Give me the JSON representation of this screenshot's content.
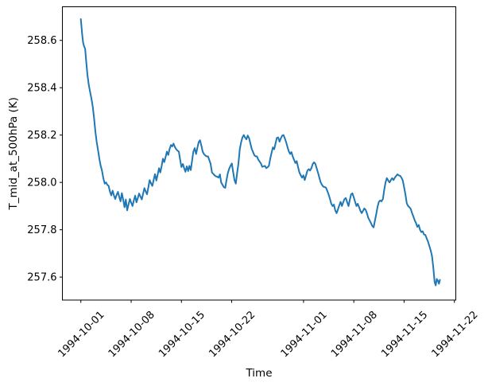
{
  "chart_data": {
    "type": "line",
    "title": "",
    "xlabel": "Time",
    "ylabel": "T_mid_at_500hPa (K)",
    "x_units": "days since 1994-10-01 00:00",
    "xlim": [
      -2.57,
      52.2
    ],
    "ylim": [
      257.503,
      258.742
    ],
    "grid": false,
    "legend_position": "none",
    "line_color": "#1f77b4",
    "line_width": 2,
    "x_ticks": [
      {
        "day": 0,
        "label": "1994-10-01"
      },
      {
        "day": 7,
        "label": "1994-10-08"
      },
      {
        "day": 14,
        "label": "1994-10-15"
      },
      {
        "day": 21,
        "label": "1994-10-22"
      },
      {
        "day": 31,
        "label": "1994-11-01"
      },
      {
        "day": 38,
        "label": "1994-11-08"
      },
      {
        "day": 45,
        "label": "1994-11-15"
      },
      {
        "day": 52,
        "label": "1994-11-22"
      }
    ],
    "y_ticks": [
      {
        "value": 257.6,
        "label": "257.6"
      },
      {
        "value": 257.8,
        "label": "257.8"
      },
      {
        "value": 258.0,
        "label": "258.0"
      },
      {
        "value": 258.2,
        "label": "258.2"
      },
      {
        "value": 258.4,
        "label": "258.4"
      },
      {
        "value": 258.6,
        "label": "258.6"
      }
    ],
    "series": [
      {
        "name": "T_mid_at_500hPa",
        "points": [
          [
            0.0,
            258.69
          ],
          [
            0.18,
            258.625
          ],
          [
            0.32,
            258.59
          ],
          [
            0.45,
            258.575
          ],
          [
            0.6,
            258.565
          ],
          [
            0.75,
            258.51
          ],
          [
            0.92,
            258.455
          ],
          [
            1.11,
            258.41
          ],
          [
            1.3,
            258.38
          ],
          [
            1.47,
            258.355
          ],
          [
            1.66,
            258.32
          ],
          [
            1.84,
            258.27
          ],
          [
            2.02,
            258.215
          ],
          [
            2.21,
            258.17
          ],
          [
            2.4,
            258.135
          ],
          [
            2.58,
            258.1
          ],
          [
            2.76,
            258.07
          ],
          [
            2.94,
            258.05
          ],
          [
            3.12,
            258.02
          ],
          [
            3.32,
            257.995
          ],
          [
            3.5,
            258.0
          ],
          [
            3.68,
            257.99
          ],
          [
            3.87,
            257.985
          ],
          [
            4.05,
            257.962
          ],
          [
            4.24,
            257.945
          ],
          [
            4.42,
            257.965
          ],
          [
            4.6,
            257.945
          ],
          [
            4.79,
            257.93
          ],
          [
            4.98,
            257.947
          ],
          [
            5.16,
            257.96
          ],
          [
            5.35,
            257.938
          ],
          [
            5.53,
            257.92
          ],
          [
            5.71,
            257.955
          ],
          [
            5.9,
            257.925
          ],
          [
            6.08,
            257.895
          ],
          [
            6.26,
            257.928
          ],
          [
            6.45,
            257.882
          ],
          [
            6.63,
            257.905
          ],
          [
            6.82,
            257.93
          ],
          [
            7.0,
            257.915
          ],
          [
            7.19,
            257.9
          ],
          [
            7.37,
            257.923
          ],
          [
            7.56,
            257.944
          ],
          [
            7.74,
            257.916
          ],
          [
            7.93,
            257.934
          ],
          [
            8.11,
            257.953
          ],
          [
            8.29,
            257.94
          ],
          [
            8.48,
            257.928
          ],
          [
            8.66,
            257.952
          ],
          [
            8.85,
            257.976
          ],
          [
            9.03,
            257.962
          ],
          [
            9.21,
            257.95
          ],
          [
            9.4,
            257.98
          ],
          [
            9.58,
            258.01
          ],
          [
            9.77,
            257.996
          ],
          [
            9.95,
            257.985
          ],
          [
            10.13,
            258.01
          ],
          [
            10.32,
            258.035
          ],
          [
            10.51,
            258.008
          ],
          [
            10.69,
            258.032
          ],
          [
            10.88,
            258.06
          ],
          [
            11.06,
            258.042
          ],
          [
            11.25,
            258.07
          ],
          [
            11.43,
            258.1
          ],
          [
            11.61,
            258.086
          ],
          [
            11.8,
            258.108
          ],
          [
            11.98,
            258.13
          ],
          [
            12.17,
            258.116
          ],
          [
            12.35,
            258.14
          ],
          [
            12.54,
            258.158
          ],
          [
            12.72,
            258.152
          ],
          [
            12.9,
            258.164
          ],
          [
            13.09,
            258.15
          ],
          [
            13.28,
            258.14
          ],
          [
            13.46,
            258.134
          ],
          [
            13.64,
            258.13
          ],
          [
            13.83,
            258.095
          ],
          [
            14.01,
            258.065
          ],
          [
            14.2,
            258.078
          ],
          [
            14.38,
            258.06
          ],
          [
            14.56,
            258.045
          ],
          [
            14.75,
            258.068
          ],
          [
            14.93,
            258.048
          ],
          [
            15.11,
            258.07
          ],
          [
            15.3,
            258.052
          ],
          [
            15.48,
            258.09
          ],
          [
            15.66,
            258.13
          ],
          [
            15.85,
            258.145
          ],
          [
            16.04,
            258.12
          ],
          [
            16.22,
            258.146
          ],
          [
            16.41,
            258.17
          ],
          [
            16.59,
            258.178
          ],
          [
            16.78,
            258.155
          ],
          [
            16.96,
            258.13
          ],
          [
            17.14,
            258.12
          ],
          [
            17.32,
            258.114
          ],
          [
            17.51,
            258.11
          ],
          [
            17.7,
            258.11
          ],
          [
            17.88,
            258.095
          ],
          [
            18.07,
            258.078
          ],
          [
            18.25,
            258.042
          ],
          [
            18.44,
            258.036
          ],
          [
            18.62,
            258.03
          ],
          [
            18.8,
            258.026
          ],
          [
            18.98,
            258.024
          ],
          [
            19.17,
            258.02
          ],
          [
            19.36,
            258.034
          ],
          [
            19.54,
            258.0
          ],
          [
            19.72,
            257.99
          ],
          [
            19.91,
            257.98
          ],
          [
            20.1,
            257.977
          ],
          [
            20.28,
            258.01
          ],
          [
            20.47,
            258.04
          ],
          [
            20.65,
            258.058
          ],
          [
            20.83,
            258.07
          ],
          [
            21.02,
            258.08
          ],
          [
            21.2,
            258.045
          ],
          [
            21.39,
            258.01
          ],
          [
            21.57,
            257.995
          ],
          [
            21.76,
            258.04
          ],
          [
            21.94,
            258.08
          ],
          [
            22.13,
            258.14
          ],
          [
            22.31,
            258.17
          ],
          [
            22.49,
            258.19
          ],
          [
            22.68,
            258.2
          ],
          [
            22.86,
            258.19
          ],
          [
            23.05,
            258.182
          ],
          [
            23.23,
            258.198
          ],
          [
            23.41,
            258.188
          ],
          [
            23.6,
            258.165
          ],
          [
            23.79,
            258.142
          ],
          [
            23.97,
            258.128
          ],
          [
            24.15,
            258.115
          ],
          [
            24.34,
            258.11
          ],
          [
            24.52,
            258.11
          ],
          [
            24.7,
            258.096
          ],
          [
            24.89,
            258.088
          ],
          [
            25.07,
            258.08
          ],
          [
            25.26,
            258.066
          ],
          [
            25.44,
            258.068
          ],
          [
            25.62,
            258.07
          ],
          [
            25.81,
            258.06
          ],
          [
            26.0,
            258.064
          ],
          [
            26.18,
            258.07
          ],
          [
            26.36,
            258.1
          ],
          [
            26.55,
            258.125
          ],
          [
            26.73,
            258.148
          ],
          [
            26.92,
            258.14
          ],
          [
            27.1,
            258.165
          ],
          [
            27.28,
            258.188
          ],
          [
            27.47,
            258.19
          ],
          [
            27.66,
            258.172
          ],
          [
            27.84,
            258.186
          ],
          [
            28.03,
            258.198
          ],
          [
            28.21,
            258.2
          ],
          [
            28.4,
            258.186
          ],
          [
            28.58,
            258.17
          ],
          [
            28.76,
            258.15
          ],
          [
            28.94,
            258.132
          ],
          [
            29.13,
            258.12
          ],
          [
            29.32,
            258.128
          ],
          [
            29.5,
            258.11
          ],
          [
            29.68,
            258.095
          ],
          [
            29.87,
            258.082
          ],
          [
            30.05,
            258.09
          ],
          [
            30.24,
            258.065
          ],
          [
            30.43,
            258.042
          ],
          [
            30.61,
            258.03
          ],
          [
            30.8,
            258.02
          ],
          [
            30.98,
            258.03
          ],
          [
            31.17,
            258.01
          ],
          [
            31.35,
            258.03
          ],
          [
            31.54,
            258.05
          ],
          [
            31.73,
            258.056
          ],
          [
            31.91,
            258.05
          ],
          [
            32.1,
            258.06
          ],
          [
            32.28,
            258.078
          ],
          [
            32.47,
            258.085
          ],
          [
            32.65,
            258.078
          ],
          [
            32.83,
            258.06
          ],
          [
            33.02,
            258.04
          ],
          [
            33.2,
            258.02
          ],
          [
            33.39,
            258.0
          ],
          [
            33.57,
            257.99
          ],
          [
            33.76,
            257.982
          ],
          [
            33.94,
            257.98
          ],
          [
            34.12,
            257.978
          ],
          [
            34.31,
            257.964
          ],
          [
            34.49,
            257.95
          ],
          [
            34.68,
            257.93
          ],
          [
            34.86,
            257.91
          ],
          [
            35.05,
            257.9
          ],
          [
            35.23,
            257.906
          ],
          [
            35.42,
            257.882
          ],
          [
            35.6,
            257.87
          ],
          [
            35.79,
            257.886
          ],
          [
            35.97,
            257.902
          ],
          [
            36.16,
            257.918
          ],
          [
            36.34,
            257.9
          ],
          [
            36.52,
            257.916
          ],
          [
            36.71,
            257.93
          ],
          [
            36.89,
            257.934
          ],
          [
            37.07,
            257.917
          ],
          [
            37.26,
            257.9
          ],
          [
            37.44,
            257.926
          ],
          [
            37.63,
            257.95
          ],
          [
            37.81,
            257.954
          ],
          [
            38.0,
            257.936
          ],
          [
            38.18,
            257.918
          ],
          [
            38.37,
            257.9
          ],
          [
            38.55,
            257.91
          ],
          [
            38.73,
            257.895
          ],
          [
            38.92,
            257.88
          ],
          [
            39.1,
            257.87
          ],
          [
            39.29,
            257.88
          ],
          [
            39.47,
            257.89
          ],
          [
            39.65,
            257.884
          ],
          [
            39.84,
            257.868
          ],
          [
            40.02,
            257.85
          ],
          [
            40.2,
            257.84
          ],
          [
            40.39,
            257.828
          ],
          [
            40.57,
            257.816
          ],
          [
            40.76,
            257.81
          ],
          [
            40.94,
            257.838
          ],
          [
            41.12,
            257.866
          ],
          [
            41.31,
            257.898
          ],
          [
            41.49,
            257.918
          ],
          [
            41.68,
            257.924
          ],
          [
            41.86,
            257.92
          ],
          [
            42.05,
            257.93
          ],
          [
            42.23,
            257.968
          ],
          [
            42.42,
            258.0
          ],
          [
            42.6,
            258.018
          ],
          [
            42.79,
            258.008
          ],
          [
            42.97,
            258.0
          ],
          [
            43.16,
            258.01
          ],
          [
            43.34,
            258.018
          ],
          [
            43.53,
            258.01
          ],
          [
            43.71,
            258.02
          ],
          [
            43.9,
            258.028
          ],
          [
            44.08,
            258.034
          ],
          [
            44.27,
            258.03
          ],
          [
            44.45,
            258.028
          ],
          [
            44.63,
            258.02
          ],
          [
            44.82,
            258.008
          ],
          [
            45.0,
            257.98
          ],
          [
            45.19,
            257.95
          ],
          [
            45.37,
            257.912
          ],
          [
            45.56,
            257.9
          ],
          [
            45.74,
            257.895
          ],
          [
            45.93,
            257.888
          ],
          [
            46.11,
            257.87
          ],
          [
            46.29,
            257.856
          ],
          [
            46.48,
            257.84
          ],
          [
            46.66,
            257.828
          ],
          [
            46.85,
            257.812
          ],
          [
            47.03,
            257.82
          ],
          [
            47.22,
            257.8
          ],
          [
            47.4,
            257.79
          ],
          [
            47.59,
            257.794
          ],
          [
            47.77,
            257.78
          ],
          [
            47.96,
            257.778
          ],
          [
            48.14,
            257.764
          ],
          [
            48.33,
            257.75
          ],
          [
            48.51,
            257.732
          ],
          [
            48.7,
            257.712
          ],
          [
            48.88,
            257.69
          ],
          [
            49.07,
            257.64
          ],
          [
            49.25,
            257.58
          ],
          [
            49.4,
            257.565
          ],
          [
            49.55,
            257.592
          ],
          [
            49.7,
            257.585
          ],
          [
            49.85,
            257.572
          ],
          [
            49.99,
            257.588
          ]
        ]
      }
    ]
  }
}
